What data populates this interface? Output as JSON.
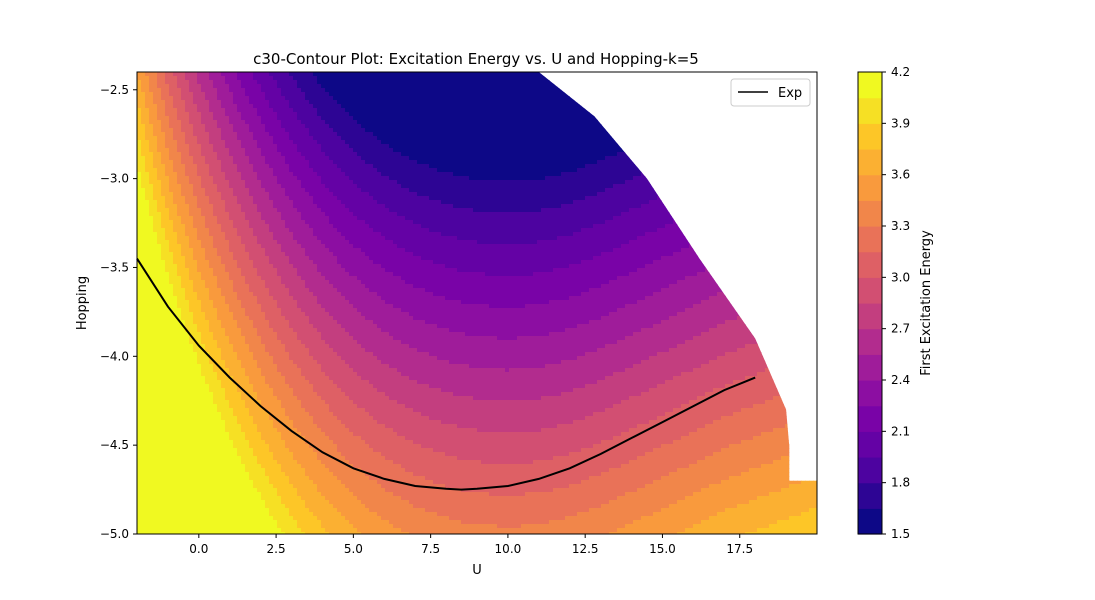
{
  "chart_data": {
    "type": "contour",
    "title": "c30-Contour Plot: Excitation Energy vs. U and Hopping-k=5",
    "xlabel": "U",
    "ylabel": "Hopping",
    "xlim": [
      -2,
      20
    ],
    "ylim": [
      -5.0,
      -2.4
    ],
    "x_ticks": [
      0.0,
      2.5,
      5.0,
      7.5,
      10.0,
      12.5,
      15.0,
      17.5
    ],
    "x_tick_labels": [
      "0.0",
      "2.5",
      "5.0",
      "7.5",
      "10.0",
      "12.5",
      "15.0",
      "17.5"
    ],
    "y_ticks": [
      -2.5,
      -3.0,
      -3.5,
      -4.0,
      -4.5,
      -5.0
    ],
    "y_tick_labels": [
      "−2.5",
      "−3.0",
      "−3.5",
      "−4.0",
      "−4.5",
      "−5.0"
    ],
    "colormap": "plasma",
    "colorbar": {
      "label": "First Excitation Energy",
      "min": 1.5,
      "max": 4.2,
      "levels": [
        1.5,
        1.65,
        1.8,
        1.95,
        2.1,
        2.25,
        2.4,
        2.55,
        2.7,
        2.85,
        3.0,
        3.15,
        3.3,
        3.45,
        3.6,
        3.75,
        3.9,
        4.05,
        4.2
      ],
      "tick_values": [
        1.5,
        1.8,
        2.1,
        2.4,
        2.7,
        3.0,
        3.3,
        3.6,
        3.9,
        4.2
      ],
      "tick_labels": [
        "1.5",
        "1.8",
        "2.1",
        "2.4",
        "2.7",
        "3.0",
        "3.3",
        "3.6",
        "3.9",
        "4.2"
      ]
    },
    "series": [
      {
        "name": "Exp",
        "color": "#000000",
        "x": [
          -2.0,
          -1.0,
          0.0,
          1.0,
          2.0,
          3.0,
          4.0,
          5.0,
          6.0,
          7.0,
          8.0,
          8.5,
          9.0,
          10.0,
          11.0,
          12.0,
          13.0,
          14.0,
          15.0,
          16.0,
          17.0,
          18.0
        ],
        "y": [
          -3.45,
          -3.72,
          -3.94,
          -4.12,
          -4.28,
          -4.42,
          -4.54,
          -4.63,
          -4.69,
          -4.73,
          -4.745,
          -4.75,
          -4.745,
          -4.73,
          -4.69,
          -4.63,
          -4.55,
          -4.46,
          -4.37,
          -4.28,
          -4.19,
          -4.12
        ]
      }
    ],
    "grid": false,
    "legend_position": "upper right",
    "valid_region_boundary": [
      [
        11.0,
        -2.4
      ],
      [
        12.8,
        -2.65
      ],
      [
        14.5,
        -3.0
      ],
      [
        16.2,
        -3.45
      ],
      [
        18.0,
        -3.9
      ],
      [
        19.0,
        -4.3
      ],
      [
        19.1,
        -4.5
      ],
      [
        19.1,
        -4.7
      ],
      [
        20.0,
        -4.7
      ]
    ]
  }
}
